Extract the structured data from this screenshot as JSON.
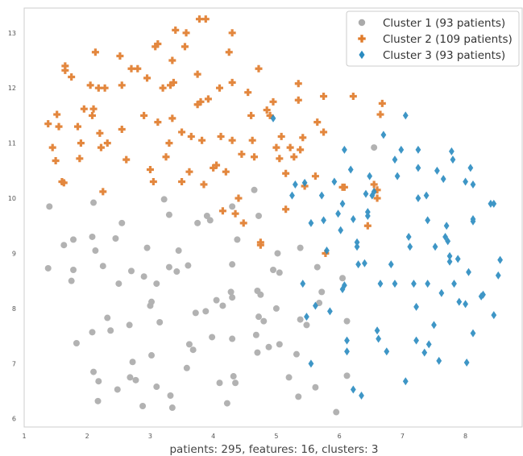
{
  "chart_data": {
    "type": "scatter",
    "title": "",
    "xlabel": "patients: 295, features: 16, clusters: 3",
    "ylabel": "",
    "xlim": [
      1,
      8.9
    ],
    "ylim": [
      5.85,
      13.45
    ],
    "x_ticks": [
      1,
      2,
      3,
      4,
      5,
      6,
      7,
      8
    ],
    "y_ticks": [
      6,
      7,
      8,
      9,
      10,
      11,
      12,
      13
    ],
    "grid": false,
    "legend_position": "top-right",
    "series": [
      {
        "name": "Cluster 1 (93 patients)",
        "color": "#aaaaaa",
        "marker": "circle",
        "points": [
          [
            1.38,
            8.73
          ],
          [
            1.4,
            9.85
          ],
          [
            1.63,
            9.15
          ],
          [
            1.78,
            9.25
          ],
          [
            1.78,
            8.7
          ],
          [
            1.75,
            8.5
          ],
          [
            1.83,
            7.37
          ],
          [
            2.08,
            9.3
          ],
          [
            2.1,
            9.92
          ],
          [
            2.13,
            9.05
          ],
          [
            2.08,
            7.57
          ],
          [
            2.1,
            6.85
          ],
          [
            2.18,
            6.68
          ],
          [
            2.17,
            6.32
          ],
          [
            2.25,
            8.77
          ],
          [
            2.32,
            7.83
          ],
          [
            2.37,
            7.6
          ],
          [
            2.45,
            9.27
          ],
          [
            2.5,
            8.45
          ],
          [
            2.55,
            9.55
          ],
          [
            2.48,
            6.53
          ],
          [
            2.67,
            7.7
          ],
          [
            2.7,
            8.68
          ],
          [
            2.68,
            6.75
          ],
          [
            2.77,
            6.7
          ],
          [
            2.72,
            7.03
          ],
          [
            2.9,
            8.58
          ],
          [
            2.88,
            6.23
          ],
          [
            2.95,
            9.1
          ],
          [
            3.0,
            8.05
          ],
          [
            3.02,
            8.12
          ],
          [
            3.02,
            7.15
          ],
          [
            3.1,
            8.45
          ],
          [
            3.15,
            7.75
          ],
          [
            3.1,
            6.58
          ],
          [
            3.22,
            9.98
          ],
          [
            3.3,
            9.7
          ],
          [
            3.3,
            8.75
          ],
          [
            3.32,
            6.42
          ],
          [
            3.35,
            6.2
          ],
          [
            3.42,
            8.67
          ],
          [
            3.45,
            9.05
          ],
          [
            3.6,
            8.78
          ],
          [
            3.62,
            7.35
          ],
          [
            3.58,
            6.92
          ],
          [
            3.68,
            7.25
          ],
          [
            3.72,
            7.92
          ],
          [
            3.75,
            9.55
          ],
          [
            3.88,
            7.95
          ],
          [
            3.9,
            9.68
          ],
          [
            3.95,
            9.6
          ],
          [
            3.98,
            7.48
          ],
          [
            4.05,
            8.15
          ],
          [
            4.1,
            6.65
          ],
          [
            4.15,
            8.05
          ],
          [
            4.22,
            6.28
          ],
          [
            4.3,
            9.85
          ],
          [
            4.3,
            8.8
          ],
          [
            4.28,
            8.3
          ],
          [
            4.3,
            8.2
          ],
          [
            4.3,
            7.45
          ],
          [
            4.32,
            6.77
          ],
          [
            4.35,
            6.65
          ],
          [
            4.38,
            9.25
          ],
          [
            4.65,
            10.15
          ],
          [
            4.68,
            7.52
          ],
          [
            4.7,
            8.32
          ],
          [
            4.72,
            7.85
          ],
          [
            4.7,
            7.2
          ],
          [
            4.72,
            9.68
          ],
          [
            4.75,
            8.25
          ],
          [
            4.8,
            7.77
          ],
          [
            4.88,
            7.3
          ],
          [
            4.95,
            8.7
          ],
          [
            5.02,
            9.0
          ],
          [
            5.0,
            8.0
          ],
          [
            5.05,
            7.35
          ],
          [
            5.05,
            8.65
          ],
          [
            5.2,
            6.75
          ],
          [
            5.32,
            7.17
          ],
          [
            5.35,
            6.4
          ],
          [
            5.38,
            9.1
          ],
          [
            5.38,
            7.8
          ],
          [
            5.48,
            7.7
          ],
          [
            5.62,
            6.57
          ],
          [
            5.65,
            8.75
          ],
          [
            5.68,
            8.1
          ],
          [
            5.72,
            8.3
          ],
          [
            5.95,
            6.12
          ],
          [
            6.05,
            8.55
          ],
          [
            6.12,
            7.77
          ],
          [
            6.12,
            6.78
          ],
          [
            6.55,
            10.92
          ]
        ]
      },
      {
        "name": "Cluster 2 (109 patients)",
        "color": "#e07b2a",
        "marker": "plus",
        "points": [
          [
            1.38,
            11.35
          ],
          [
            1.45,
            10.92
          ],
          [
            1.5,
            10.68
          ],
          [
            1.52,
            11.52
          ],
          [
            1.55,
            11.3
          ],
          [
            1.6,
            10.3
          ],
          [
            1.63,
            10.28
          ],
          [
            1.65,
            12.4
          ],
          [
            1.65,
            12.32
          ],
          [
            1.75,
            12.2
          ],
          [
            1.85,
            11.3
          ],
          [
            1.88,
            10.72
          ],
          [
            1.9,
            11.0
          ],
          [
            1.95,
            11.62
          ],
          [
            2.05,
            12.05
          ],
          [
            2.08,
            11.5
          ],
          [
            2.1,
            11.62
          ],
          [
            2.13,
            12.65
          ],
          [
            2.18,
            12.0
          ],
          [
            2.2,
            11.18
          ],
          [
            2.22,
            10.92
          ],
          [
            2.25,
            10.12
          ],
          [
            2.28,
            12.0
          ],
          [
            2.32,
            11.0
          ],
          [
            2.52,
            12.58
          ],
          [
            2.55,
            12.05
          ],
          [
            2.55,
            11.25
          ],
          [
            2.62,
            10.7
          ],
          [
            2.7,
            12.35
          ],
          [
            2.8,
            12.35
          ],
          [
            2.9,
            11.5
          ],
          [
            2.95,
            12.18
          ],
          [
            3.0,
            10.52
          ],
          [
            3.05,
            10.3
          ],
          [
            3.08,
            12.75
          ],
          [
            3.12,
            12.8
          ],
          [
            3.12,
            11.38
          ],
          [
            3.2,
            12.0
          ],
          [
            3.25,
            10.75
          ],
          [
            3.3,
            11.0
          ],
          [
            3.32,
            12.05
          ],
          [
            3.35,
            12.5
          ],
          [
            3.35,
            11.45
          ],
          [
            3.37,
            12.1
          ],
          [
            3.4,
            13.05
          ],
          [
            3.5,
            10.3
          ],
          [
            3.5,
            11.2
          ],
          [
            3.55,
            12.75
          ],
          [
            3.57,
            13.0
          ],
          [
            3.62,
            10.48
          ],
          [
            3.65,
            11.12
          ],
          [
            3.75,
            12.25
          ],
          [
            3.75,
            11.7
          ],
          [
            3.78,
            13.25
          ],
          [
            3.8,
            11.75
          ],
          [
            3.82,
            11.05
          ],
          [
            3.85,
            10.25
          ],
          [
            3.88,
            13.25
          ],
          [
            3.92,
            11.8
          ],
          [
            4.0,
            10.55
          ],
          [
            4.05,
            10.6
          ],
          [
            4.1,
            12.0
          ],
          [
            4.12,
            11.12
          ],
          [
            4.15,
            9.77
          ],
          [
            4.2,
            10.48
          ],
          [
            4.25,
            12.65
          ],
          [
            4.3,
            13.0
          ],
          [
            4.3,
            11.05
          ],
          [
            4.3,
            12.1
          ],
          [
            4.35,
            9.72
          ],
          [
            4.4,
            10.0
          ],
          [
            4.45,
            10.8
          ],
          [
            4.48,
            9.55
          ],
          [
            4.55,
            11.92
          ],
          [
            4.6,
            11.5
          ],
          [
            4.62,
            11.05
          ],
          [
            4.65,
            10.75
          ],
          [
            4.72,
            12.35
          ],
          [
            4.75,
            9.2
          ],
          [
            4.75,
            9.15
          ],
          [
            4.85,
            11.6
          ],
          [
            4.9,
            11.5
          ],
          [
            4.95,
            11.75
          ],
          [
            5.0,
            10.92
          ],
          [
            5.05,
            10.72
          ],
          [
            5.08,
            11.12
          ],
          [
            5.15,
            10.45
          ],
          [
            5.15,
            9.8
          ],
          [
            5.22,
            10.92
          ],
          [
            5.28,
            10.75
          ],
          [
            5.35,
            12.08
          ],
          [
            5.35,
            11.78
          ],
          [
            5.38,
            10.88
          ],
          [
            5.42,
            11.1
          ],
          [
            5.45,
            10.22
          ],
          [
            5.62,
            10.4
          ],
          [
            5.65,
            11.38
          ],
          [
            5.75,
            11.85
          ],
          [
            5.75,
            11.2
          ],
          [
            5.78,
            9.0
          ],
          [
            6.05,
            10.2
          ],
          [
            6.08,
            10.2
          ],
          [
            6.22,
            11.85
          ],
          [
            6.45,
            9.5
          ],
          [
            6.55,
            10.25
          ],
          [
            6.6,
            10.0
          ],
          [
            6.6,
            10.15
          ],
          [
            6.65,
            11.52
          ],
          [
            6.68,
            11.72
          ]
        ]
      },
      {
        "name": "Cluster 3 (93 patients)",
        "color": "#2a8bc0",
        "marker": "diamond",
        "points": [
          [
            4.95,
            11.45
          ],
          [
            5.25,
            10.05
          ],
          [
            5.3,
            10.25
          ],
          [
            5.45,
            10.28
          ],
          [
            5.42,
            8.45
          ],
          [
            5.48,
            7.85
          ],
          [
            5.55,
            9.55
          ],
          [
            5.55,
            7.0
          ],
          [
            5.62,
            8.05
          ],
          [
            5.72,
            10.05
          ],
          [
            5.75,
            9.6
          ],
          [
            5.8,
            9.05
          ],
          [
            5.85,
            7.95
          ],
          [
            5.92,
            10.3
          ],
          [
            5.98,
            9.72
          ],
          [
            6.02,
            9.42
          ],
          [
            6.05,
            8.35
          ],
          [
            6.08,
            8.42
          ],
          [
            6.12,
            7.42
          ],
          [
            6.12,
            7.22
          ],
          [
            6.08,
            10.88
          ],
          [
            6.05,
            9.9
          ],
          [
            6.18,
            10.52
          ],
          [
            6.22,
            9.62
          ],
          [
            6.28,
            9.2
          ],
          [
            6.28,
            9.12
          ],
          [
            6.3,
            8.8
          ],
          [
            6.22,
            6.53
          ],
          [
            6.35,
            6.42
          ],
          [
            6.4,
            8.82
          ],
          [
            6.42,
            10.08
          ],
          [
            6.45,
            9.68
          ],
          [
            6.45,
            9.75
          ],
          [
            6.48,
            10.4
          ],
          [
            6.52,
            10.05
          ],
          [
            6.55,
            10.12
          ],
          [
            6.6,
            7.6
          ],
          [
            6.62,
            7.45
          ],
          [
            6.65,
            8.45
          ],
          [
            6.7,
            11.15
          ],
          [
            6.75,
            7.22
          ],
          [
            6.82,
            8.8
          ],
          [
            6.88,
            10.7
          ],
          [
            6.88,
            8.45
          ],
          [
            6.92,
            10.4
          ],
          [
            6.98,
            10.88
          ],
          [
            7.05,
            11.5
          ],
          [
            7.05,
            6.68
          ],
          [
            7.1,
            9.3
          ],
          [
            7.12,
            9.12
          ],
          [
            7.18,
            8.45
          ],
          [
            7.22,
            8.03
          ],
          [
            7.25,
            10.88
          ],
          [
            7.25,
            10.55
          ],
          [
            7.22,
            7.42
          ],
          [
            7.25,
            10.0
          ],
          [
            7.35,
            7.2
          ],
          [
            7.38,
            10.05
          ],
          [
            7.4,
            9.6
          ],
          [
            7.4,
            8.45
          ],
          [
            7.42,
            7.35
          ],
          [
            7.5,
            7.7
          ],
          [
            7.52,
            9.12
          ],
          [
            7.55,
            10.5
          ],
          [
            7.58,
            7.05
          ],
          [
            7.62,
            8.28
          ],
          [
            7.65,
            10.35
          ],
          [
            7.68,
            9.3
          ],
          [
            7.7,
            9.5
          ],
          [
            7.72,
            9.22
          ],
          [
            7.75,
            8.95
          ],
          [
            7.75,
            8.85
          ],
          [
            7.78,
            10.85
          ],
          [
            7.8,
            10.7
          ],
          [
            7.82,
            8.45
          ],
          [
            7.88,
            8.9
          ],
          [
            7.9,
            8.12
          ],
          [
            8.0,
            8.08
          ],
          [
            8.0,
            10.3
          ],
          [
            8.02,
            7.02
          ],
          [
            8.05,
            8.66
          ],
          [
            8.08,
            10.55
          ],
          [
            8.12,
            9.58
          ],
          [
            8.12,
            9.62
          ],
          [
            8.12,
            7.55
          ],
          [
            8.25,
            8.22
          ],
          [
            8.28,
            8.25
          ],
          [
            8.4,
            9.9
          ],
          [
            8.45,
            9.9
          ],
          [
            8.45,
            7.88
          ],
          [
            8.52,
            8.6
          ],
          [
            8.55,
            8.88
          ],
          [
            8.12,
            10.25
          ]
        ]
      }
    ]
  }
}
